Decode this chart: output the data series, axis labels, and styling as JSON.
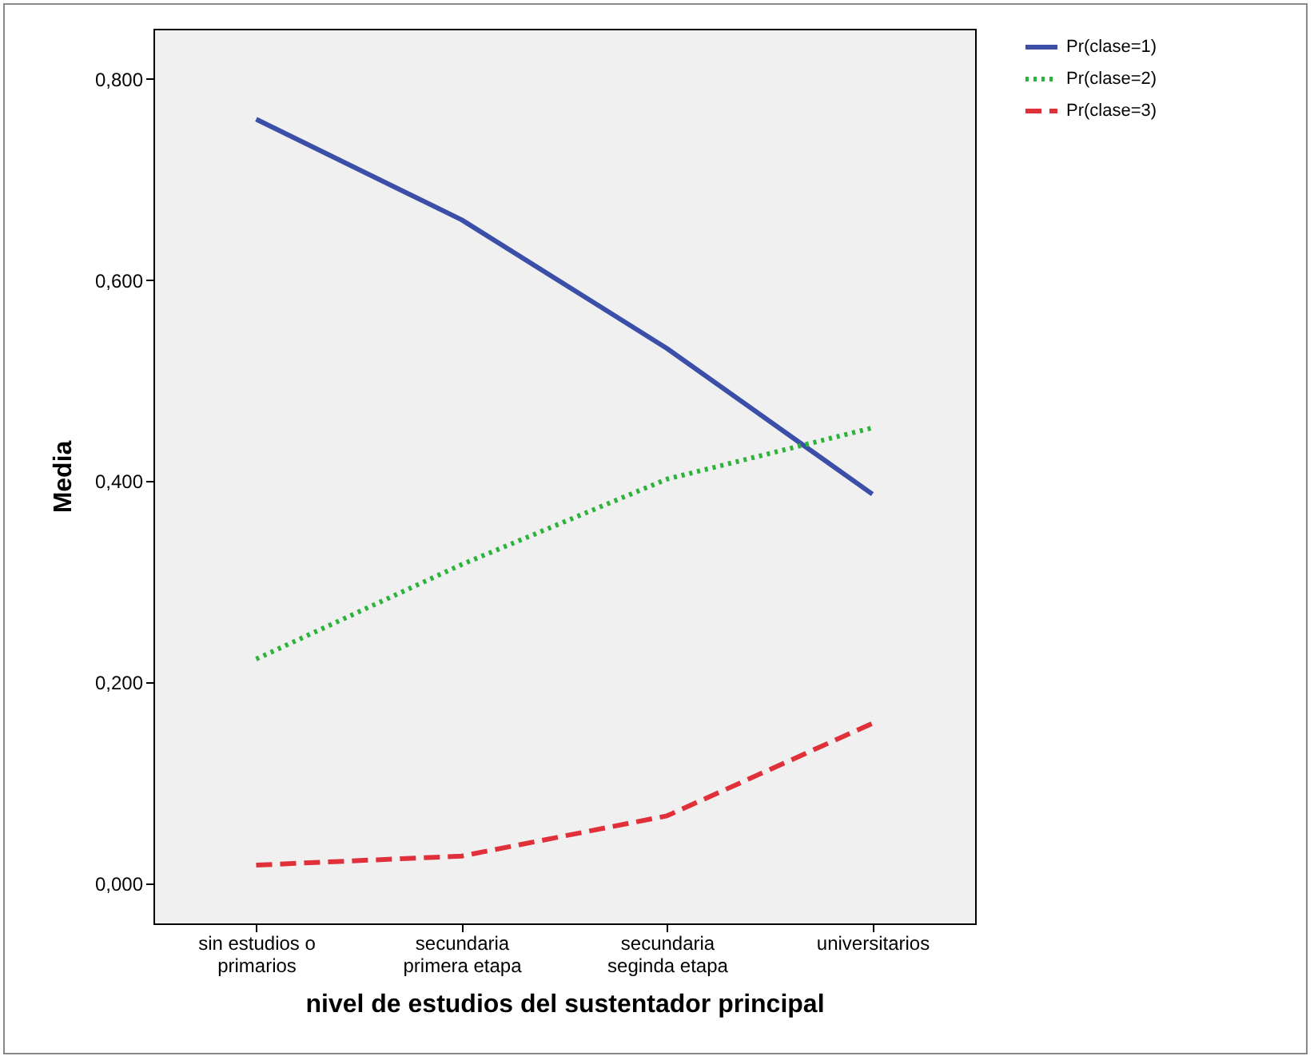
{
  "chart_data": {
    "type": "line",
    "xlabel": "nivel de estudios del sustentador principal",
    "ylabel": "Media",
    "categories": [
      "sin estudios o\nprimarios",
      "secundaria\nprimera etapa",
      "secundaria\nseginda etapa",
      "universitarios"
    ],
    "series": [
      {
        "name": "Pr(clase=1)",
        "color": "#3b4fa8",
        "line_style": "solid",
        "values": [
          0.76,
          0.66,
          0.532,
          0.387
        ]
      },
      {
        "name": "Pr(clase=2)",
        "color": "#2db33a",
        "line_style": "dotted",
        "values": [
          0.223,
          0.317,
          0.402,
          0.453
        ]
      },
      {
        "name": "Pr(clase=3)",
        "color": "#e0303a",
        "line_style": "dashed",
        "values": [
          0.018,
          0.027,
          0.067,
          0.159
        ]
      }
    ],
    "ylim": [
      -0.04,
      0.85
    ],
    "yticks": [
      {
        "value": 0,
        "label": "0,000"
      },
      {
        "value": 0.2,
        "label": "0,200"
      },
      {
        "value": 0.4,
        "label": "0,400"
      },
      {
        "value": 0.6,
        "label": "0,600"
      },
      {
        "value": 0.8,
        "label": "0,800"
      }
    ],
    "grid": false,
    "legend": "top right",
    "marker": "none"
  }
}
